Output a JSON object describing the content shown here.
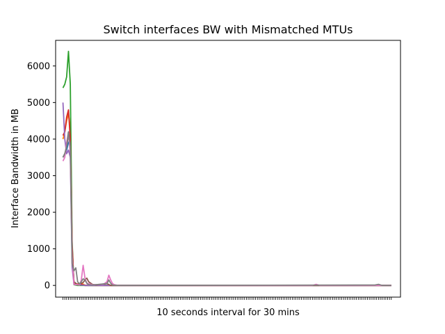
{
  "chart_data": {
    "type": "line",
    "title": "Switch interfaces BW with Mismatched MTUs",
    "xlabel": "10 seconds interval for 30 mins",
    "ylabel": "Interface Bandwidth in MB",
    "x_tick_count": 180,
    "x_tick_labels_visible": false,
    "xlim": [
      -4,
      184
    ],
    "ylim": [
      -320,
      6700
    ],
    "yticks": [
      0,
      1000,
      2000,
      3000,
      4000,
      5000,
      6000
    ],
    "grid": false,
    "legend": "none",
    "series": [
      {
        "color": "#1f77b4",
        "points": [
          [
            0,
            3500
          ],
          [
            1,
            3600
          ],
          [
            2,
            3700
          ],
          [
            3,
            3900
          ],
          [
            4,
            4000
          ],
          [
            5,
            1000
          ],
          [
            6,
            50
          ],
          [
            8,
            20
          ],
          [
            12,
            0
          ],
          [
            179,
            0
          ]
        ]
      },
      {
        "color": "#ff7f0e",
        "points": [
          [
            0,
            4000
          ],
          [
            1,
            4200
          ],
          [
            2,
            4500
          ],
          [
            3,
            4700
          ],
          [
            4,
            4300
          ],
          [
            5,
            900
          ],
          [
            6,
            100
          ],
          [
            7,
            30
          ],
          [
            10,
            60
          ],
          [
            12,
            10
          ],
          [
            16,
            0
          ],
          [
            179,
            0
          ]
        ]
      },
      {
        "color": "#2ca02c",
        "points": [
          [
            0,
            5400
          ],
          [
            1,
            5500
          ],
          [
            2,
            5700
          ],
          [
            3,
            6400
          ],
          [
            4,
            5500
          ],
          [
            5,
            1200
          ],
          [
            6,
            20
          ],
          [
            8,
            0
          ],
          [
            179,
            0
          ]
        ]
      },
      {
        "color": "#d62728",
        "points": [
          [
            0,
            4100
          ],
          [
            1,
            4200
          ],
          [
            2,
            4600
          ],
          [
            3,
            4800
          ],
          [
            4,
            4000
          ],
          [
            5,
            1100
          ],
          [
            6,
            40
          ],
          [
            10,
            30
          ],
          [
            12,
            0
          ],
          [
            179,
            0
          ]
        ]
      },
      {
        "color": "#9467bd",
        "points": [
          [
            0,
            5000
          ],
          [
            1,
            4000
          ],
          [
            2,
            3600
          ],
          [
            3,
            3700
          ],
          [
            4,
            3500
          ],
          [
            5,
            500
          ],
          [
            6,
            30
          ],
          [
            10,
            10
          ],
          [
            14,
            0
          ],
          [
            179,
            0
          ]
        ]
      },
      {
        "color": "#8c564b",
        "points": [
          [
            0,
            3500
          ],
          [
            1,
            3600
          ],
          [
            2,
            3800
          ],
          [
            3,
            4100
          ],
          [
            4,
            3900
          ],
          [
            5,
            800
          ],
          [
            6,
            100
          ],
          [
            8,
            20
          ],
          [
            11,
            80
          ],
          [
            12,
            150
          ],
          [
            13,
            200
          ],
          [
            14,
            100
          ],
          [
            16,
            30
          ],
          [
            18,
            10
          ],
          [
            24,
            50
          ],
          [
            26,
            0
          ],
          [
            179,
            0
          ]
        ]
      },
      {
        "color": "#e377c2",
        "points": [
          [
            0,
            3400
          ],
          [
            1,
            3500
          ],
          [
            2,
            3900
          ],
          [
            3,
            4200
          ],
          [
            4,
            3600
          ],
          [
            5,
            800
          ],
          [
            6,
            30
          ],
          [
            9,
            10
          ],
          [
            10,
            150
          ],
          [
            11,
            550
          ],
          [
            12,
            200
          ],
          [
            13,
            60
          ],
          [
            16,
            20
          ],
          [
            22,
            30
          ],
          [
            24,
            100
          ],
          [
            25,
            280
          ],
          [
            26,
            150
          ],
          [
            27,
            50
          ],
          [
            28,
            20
          ],
          [
            30,
            0
          ],
          [
            136,
            0
          ],
          [
            138,
            30
          ],
          [
            140,
            0
          ],
          [
            179,
            0
          ]
        ]
      },
      {
        "color": "#7f7f7f",
        "points": [
          [
            0,
            3500
          ],
          [
            1,
            3600
          ],
          [
            2,
            3800
          ],
          [
            3,
            4200
          ],
          [
            4,
            3800
          ],
          [
            5,
            600
          ],
          [
            6,
            400
          ],
          [
            7,
            480
          ],
          [
            8,
            100
          ],
          [
            9,
            40
          ],
          [
            10,
            100
          ],
          [
            11,
            180
          ],
          [
            12,
            150
          ],
          [
            13,
            60
          ],
          [
            14,
            20
          ],
          [
            16,
            10
          ],
          [
            24,
            50
          ],
          [
            25,
            150
          ],
          [
            26,
            60
          ],
          [
            27,
            10
          ],
          [
            30,
            0
          ],
          [
            170,
            10
          ],
          [
            172,
            30
          ],
          [
            174,
            0
          ],
          [
            179,
            0
          ]
        ]
      }
    ]
  }
}
